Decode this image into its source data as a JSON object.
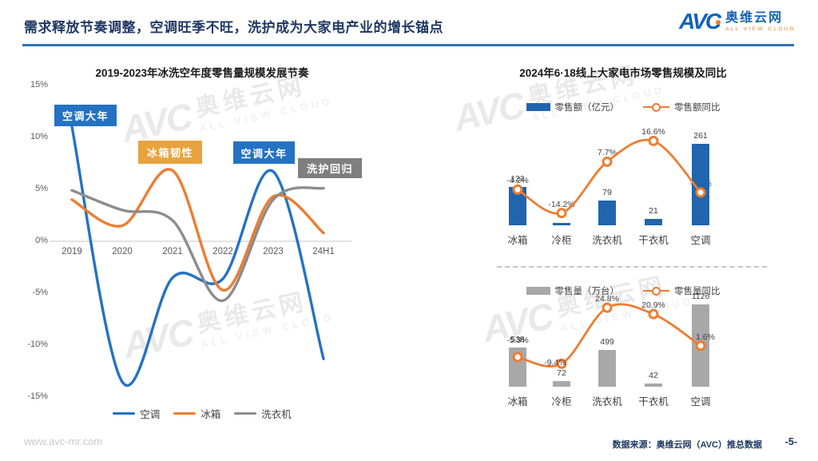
{
  "header": {
    "title": "需求释放节奏调整，空调旺季不旺，洗护成为大家电产业的增长锚点"
  },
  "logo": {
    "brand": "AVC",
    "name": "奥维云网",
    "tagline": "ALL VIEW CLOUD"
  },
  "watermark": {
    "brand": "AVC",
    "name": "奥维云网",
    "tagline": "ALL VIEW CLOUD"
  },
  "theme": {
    "header_navy": "#1F3864",
    "rule_blue": "#2E74B5",
    "accent_blue": "#2472C4",
    "bar_blue": "#2065AE",
    "bar_gray": "#A8A8A8",
    "line_orange": "#ED7D31",
    "line_gray": "#8C8C8C",
    "annotation_amber": "#E8A33C",
    "annotation_gray": "#7F7F7F"
  },
  "chart_data": [
    {
      "id": "annual-trend",
      "type": "line",
      "title": "2019-2023年冰洗空年度零售量规模发展节奏",
      "categories": [
        "2019",
        "2020",
        "2021",
        "2022",
        "2023",
        "24H1"
      ],
      "yticks": [
        "15%",
        "10%",
        "5%",
        "0%",
        "-5%",
        "-10%",
        "-15%"
      ],
      "ylim": [
        -15,
        15
      ],
      "grid": "0%-baseline-only",
      "legend_position": "bottom",
      "series": [
        {
          "name": "空调",
          "color": "#2472C4",
          "values": [
            11,
            -13.5,
            -3.5,
            -3.6,
            6.7,
            -11.3
          ]
        },
        {
          "name": "冰箱",
          "color": "#ED7D31",
          "values": [
            4,
            1.5,
            6.8,
            -4.7,
            4.3,
            0.8
          ]
        },
        {
          "name": "洗衣机",
          "color": "#8C8C8C",
          "values": [
            4.9,
            3.0,
            2.0,
            -5.7,
            4.0,
            5.1
          ]
        }
      ],
      "annotations": [
        {
          "label": "空调大年",
          "color": "#2472C4"
        },
        {
          "label": "冰箱韧性",
          "color": "#E8A33C"
        },
        {
          "label": "空调大年",
          "color": "#2472C4"
        },
        {
          "label": "洗护回归",
          "color": "#7F7F7F"
        }
      ]
    },
    {
      "id": "retail-value-618",
      "type": "bar",
      "title": "2024年6·18线上大家电市场零售规模及同比",
      "categories": [
        "冰箱",
        "冷柜",
        "洗衣机",
        "干衣机",
        "空调"
      ],
      "bar": {
        "name": "零售额（亿元）",
        "color": "#2065AE",
        "values": [
          122,
          7,
          79,
          21,
          261
        ]
      },
      "line": {
        "name": "零售额同比",
        "color": "#ED7D31",
        "values_pct": [
          -4.2,
          -14.2,
          7.7,
          16.6,
          -5.4
        ],
        "labels": [
          "-4.2%",
          "-14.2%",
          "7.7%",
          "16.6%",
          "-5.4%"
        ]
      }
    },
    {
      "id": "retail-volume-618",
      "type": "bar",
      "categories": [
        "冰箱",
        "冷柜",
        "洗衣机",
        "干衣机",
        "空调"
      ],
      "bar": {
        "name": "零售量（万台）",
        "color": "#A8A8A8",
        "values": [
          538,
          72,
          499,
          42,
          1126
        ]
      },
      "line": {
        "name": "零售量同比",
        "color": "#ED7D31",
        "values_pct": [
          -5.3,
          -9.4,
          24.8,
          20.9,
          1.6
        ],
        "labels": [
          "-5.3%",
          "-9.4%",
          "24.8%",
          "20.9%",
          "1.6%"
        ]
      }
    }
  ],
  "footer": {
    "site": "www.avc-mr.com",
    "source": "数据来源：奥维云网（AVC）推总数据",
    "page_number": "-5-"
  }
}
